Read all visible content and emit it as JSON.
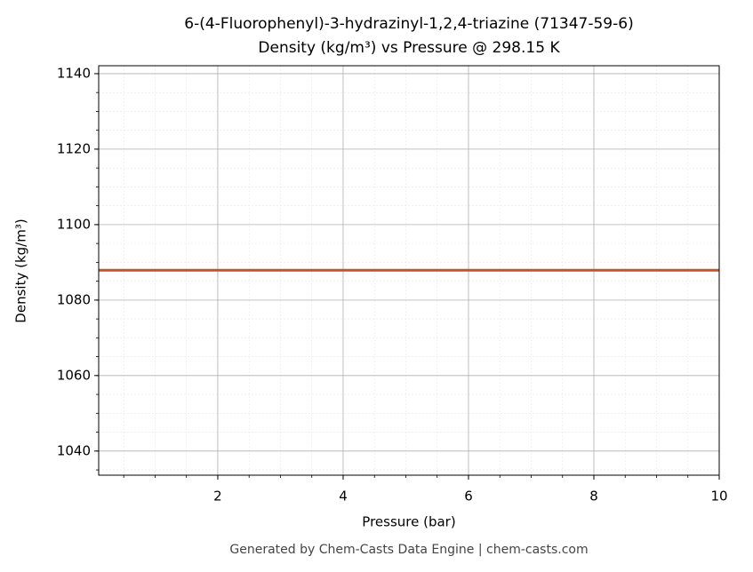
{
  "chart_data": {
    "type": "line",
    "title": "6-(4-Fluorophenyl)-3-hydrazinyl-1,2,4-triazine (71347-59-6)",
    "subtitle": "Density (kg/m³) vs Pressure @ 298.15 K",
    "xlabel": "Pressure (bar)",
    "ylabel": "Density (kg/m³)",
    "x": [
      0.1,
      10
    ],
    "series": [
      {
        "name": "Density",
        "color": "#c4532b",
        "values": [
          1087.9,
          1087.9
        ]
      }
    ],
    "xlim": [
      0.1,
      10
    ],
    "xticks": [
      2,
      4,
      6,
      8,
      10
    ],
    "ylim": [
      1033.6,
      1142.1
    ],
    "yticks": [
      1040,
      1060,
      1080,
      1100,
      1120,
      1140
    ],
    "grid": true,
    "minor_grid": true
  },
  "footer": "Generated by Chem-Casts Data Engine | chem-casts.com"
}
